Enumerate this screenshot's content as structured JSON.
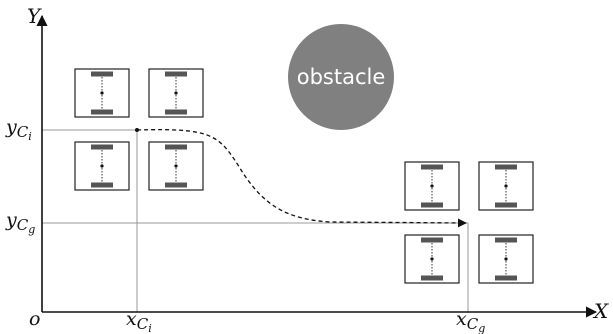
{
  "axes": {
    "y_axis_label": "Y",
    "x_axis_label": "X",
    "origin_label": "o",
    "y_ticks": [
      {
        "base": "y",
        "sub1": "C",
        "sub2": "i"
      },
      {
        "base": "y",
        "sub1": "C",
        "sub2": "g"
      }
    ],
    "x_ticks": [
      {
        "base": "x",
        "sub1": "C",
        "sub2": "i"
      },
      {
        "base": "x",
        "sub1": "C",
        "sub2": "g"
      }
    ]
  },
  "obstacle": {
    "label": "obstacle",
    "color": "#808080"
  },
  "robots": {
    "count_start": 4,
    "count_goal": 4,
    "body_color": "#ffffff",
    "wheel_color": "#555555",
    "outline_color": "#222222"
  },
  "path": {
    "style": "dashed",
    "color": "#111111"
  },
  "colors": {
    "axis": "#111111",
    "guide": "#999999"
  }
}
